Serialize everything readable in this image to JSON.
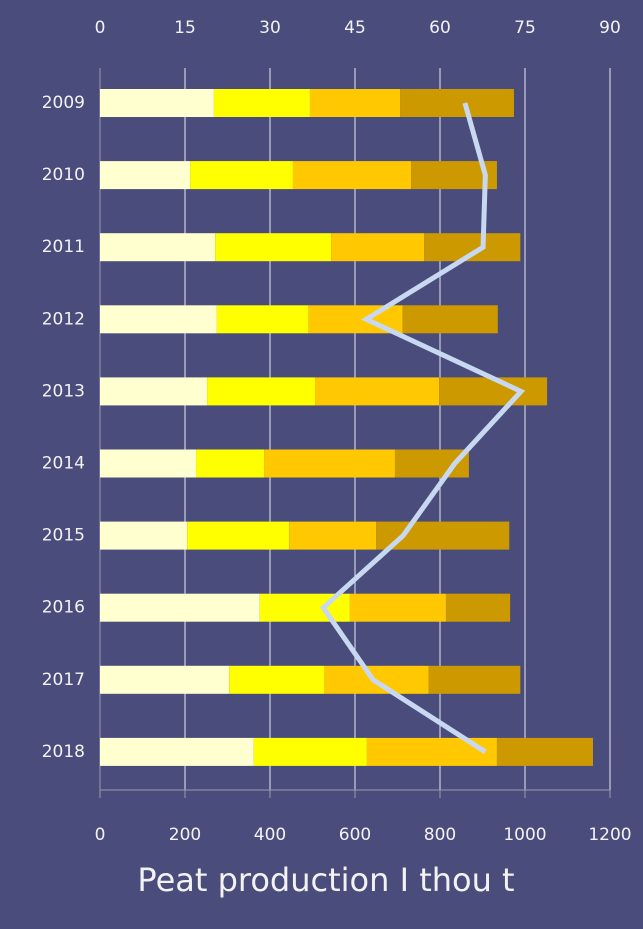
{
  "chart_data": {
    "type": "bar",
    "orientation": "horizontal",
    "stacked": true,
    "title": "Peat production I thou t",
    "categories": [
      "2009",
      "2010",
      "2011",
      "2012",
      "2013",
      "2014",
      "2015",
      "2016",
      "2017",
      "2018"
    ],
    "series": [
      {
        "color": "#ffffd0",
        "values": [
          268,
          212,
          271,
          275,
          252,
          226,
          205,
          376,
          304,
          362
        ]
      },
      {
        "color": "#ffff00",
        "values": [
          226,
          242,
          273,
          216,
          254,
          160,
          240,
          212,
          224,
          266
        ]
      },
      {
        "color": "#ffc800",
        "values": [
          212,
          278,
          219,
          221,
          292,
          308,
          205,
          226,
          245,
          306
        ]
      },
      {
        "color": "#cc9900",
        "values": [
          268,
          202,
          226,
          224,
          254,
          174,
          313,
          151,
          216,
          226
        ]
      },
      {
        "type": "line",
        "axis": "x2",
        "color": "#c8d8f0",
        "values": [
          64.4,
          68,
          67.6,
          47,
          74.3,
          62.6,
          53.5,
          39.4,
          48.2,
          68
        ]
      }
    ],
    "xlim": [
      0,
      1200
    ],
    "xticks": [
      0,
      200,
      400,
      600,
      800,
      1000,
      1200
    ],
    "x2lim": [
      0,
      90
    ],
    "x2ticks": [
      0,
      15,
      30,
      45,
      60,
      75,
      90
    ],
    "grid": true
  }
}
